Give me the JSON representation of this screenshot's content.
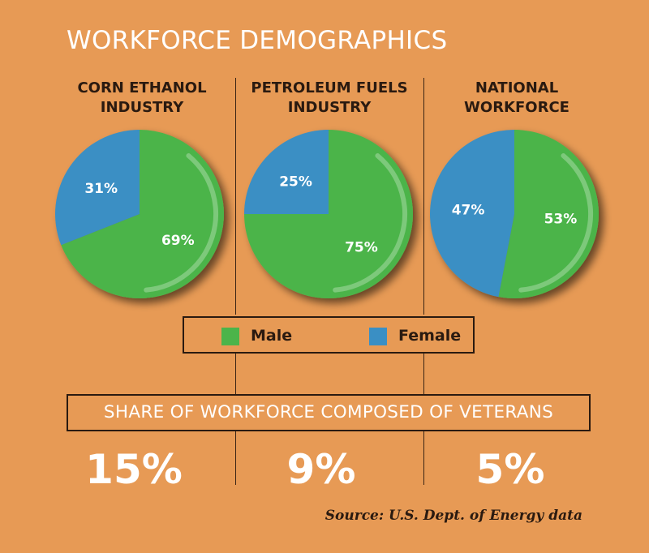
{
  "title": "WORKFORCE DEMOGRAPHICS",
  "colors": {
    "male": "#4CB44A",
    "female": "#3A8FC4",
    "background": "#E79A55"
  },
  "legend": {
    "male": "Male",
    "female": "Female"
  },
  "veterans": {
    "heading": "SHARE OF WORKFORCE COMPOSED OF VETERANS",
    "values": [
      "15%",
      "9%",
      "5%"
    ]
  },
  "source": "Source: U.S. Dept. of Energy data",
  "chart_data": [
    {
      "type": "pie",
      "title": "CORN ETHANOL INDUSTRY",
      "title_lines": [
        "CORN ETHANOL",
        "INDUSTRY"
      ],
      "slices": [
        {
          "name": "Male",
          "value": 69,
          "label": "69%"
        },
        {
          "name": "Female",
          "value": 31,
          "label": "31%"
        }
      ]
    },
    {
      "type": "pie",
      "title": "PETROLEUM FUELS INDUSTRY",
      "title_lines": [
        "PETROLEUM FUELS",
        "INDUSTRY"
      ],
      "slices": [
        {
          "name": "Male",
          "value": 75,
          "label": "75%"
        },
        {
          "name": "Female",
          "value": 25,
          "label": "25%"
        }
      ]
    },
    {
      "type": "pie",
      "title": "NATIONAL WORKFORCE",
      "title_lines": [
        "NATIONAL",
        "WORKFORCE"
      ],
      "slices": [
        {
          "name": "Male",
          "value": 53,
          "label": "53%"
        },
        {
          "name": "Female",
          "value": 47,
          "label": "47%"
        }
      ]
    }
  ]
}
